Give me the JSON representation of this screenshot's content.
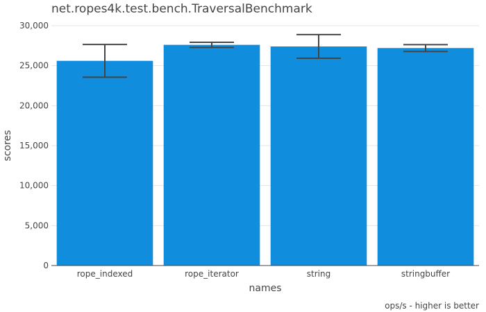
{
  "chart_data": {
    "type": "bar",
    "title": "net.ropes4k.test.bench.TraversalBenchmark",
    "xlabel": "names",
    "ylabel": "scores",
    "annotation": "ops/s - higher is better",
    "categories": [
      "rope_indexed",
      "rope_iterator",
      "string",
      "stringbuffer"
    ],
    "values": [
      25600,
      27600,
      27400,
      27200
    ],
    "errors": [
      2050,
      320,
      1480,
      430
    ],
    "ylim": [
      0,
      30000
    ],
    "yticks": [
      0,
      5000,
      10000,
      15000,
      20000,
      25000,
      30000
    ],
    "ytick_labels": [
      "0",
      "5,000",
      "10,000",
      "15,000",
      "20,000",
      "25,000",
      "30,000"
    ],
    "grid": true,
    "bar_color": "#118dde",
    "error_color": "#444444"
  }
}
